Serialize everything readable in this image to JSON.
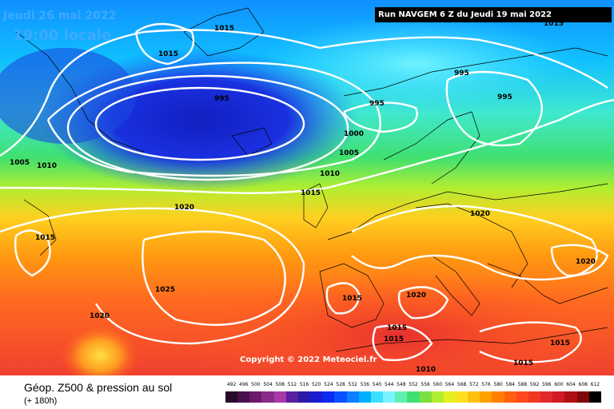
{
  "header": {
    "date": "Jeudi 26 mai 2022",
    "local_time": "19:00 locale",
    "run_info": "Run NAVGEM 6 Z du Jeudi 19 mai 2022"
  },
  "copyright": "Copyright © 2022 Meteociel.fr",
  "footer": {
    "title": "Géop. Z500 & pression au sol",
    "subtitle": "(+ 180h)"
  },
  "isobar_labels": [
    "1015",
    "1015",
    "1015",
    "995",
    "995",
    "995",
    "995",
    "1000",
    "1005",
    "1010",
    "1005",
    "1010",
    "1015",
    "1020",
    "1015",
    "1020",
    "1025",
    "1020",
    "1020",
    "1015",
    "1020",
    "1015",
    "1015",
    "1010",
    "1015",
    "1015"
  ],
  "legend": {
    "values": [
      "492",
      "496",
      "500",
      "504",
      "508",
      "512",
      "516",
      "520",
      "524",
      "528",
      "532",
      "536",
      "540",
      "544",
      "548",
      "552",
      "556",
      "560",
      "564",
      "568",
      "572",
      "576",
      "580",
      "584",
      "588",
      "592",
      "596",
      "600",
      "604",
      "608",
      "612"
    ],
    "colors": [
      "#2a0a2a",
      "#4a0f4a",
      "#6a1a6a",
      "#8a2a8a",
      "#a83aa8",
      "#5a1ea0",
      "#2a1aa8",
      "#1a1ad0",
      "#0a2af0",
      "#0a50ff",
      "#0a80ff",
      "#00b0ff",
      "#3ce0ff",
      "#7af2ff",
      "#5ff0b0",
      "#40e070",
      "#7ae040",
      "#b0ee30",
      "#e6f020",
      "#ffe020",
      "#ffc010",
      "#ffa000",
      "#ff8000",
      "#ff6010",
      "#ff4820",
      "#f03a20",
      "#e02a2a",
      "#d01a28",
      "#b01010",
      "#800808",
      "#000000"
    ]
  }
}
